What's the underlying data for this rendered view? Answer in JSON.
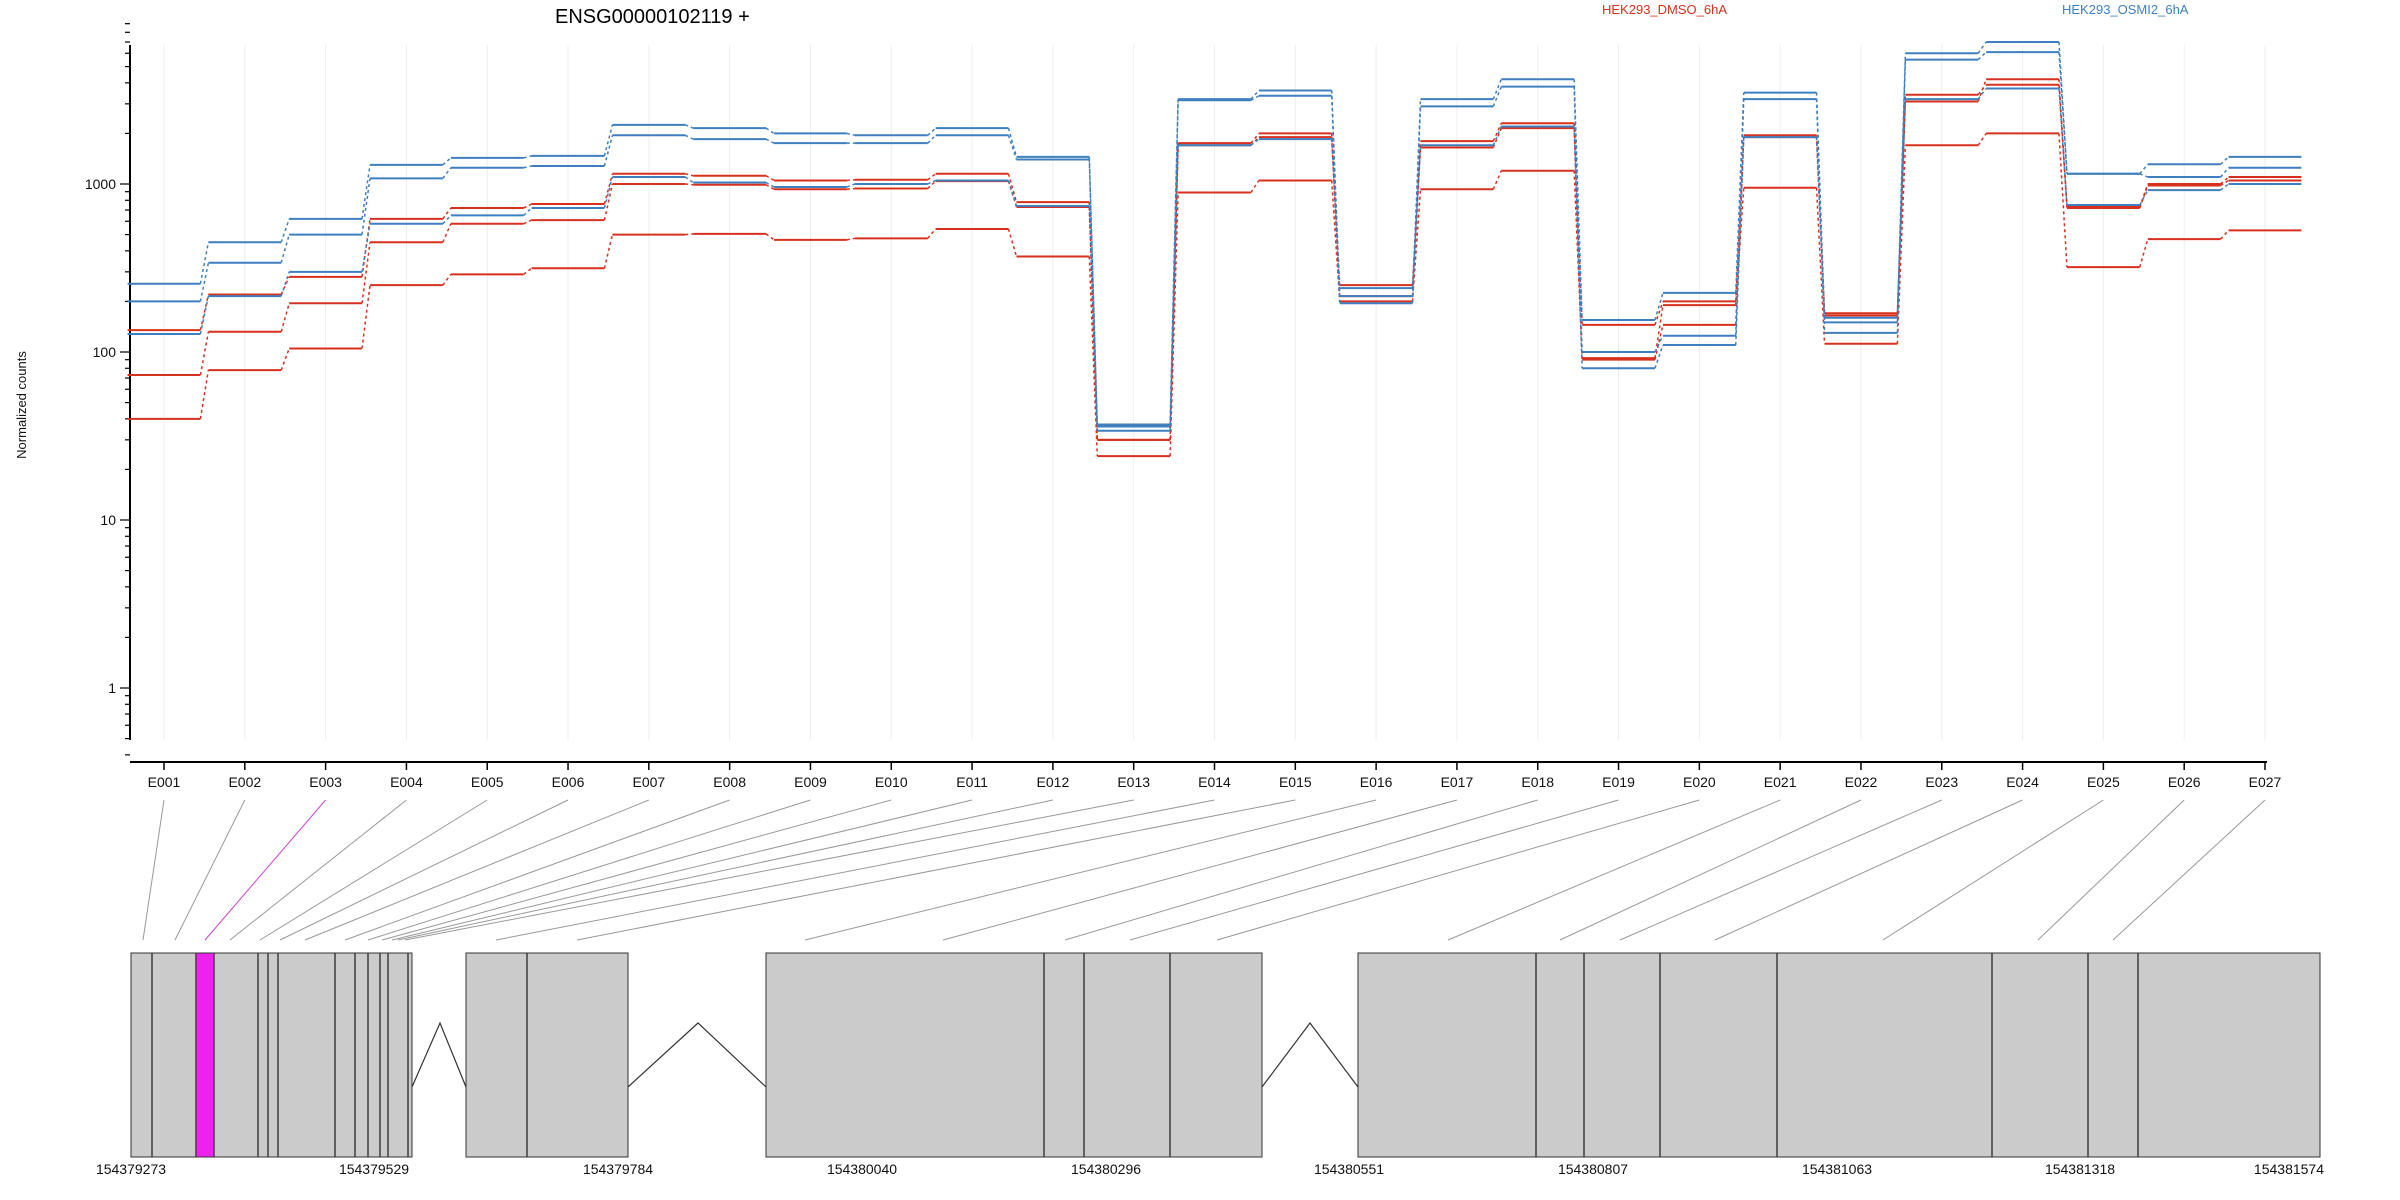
{
  "chart_data": {
    "type": "line",
    "title": "ENSG00000102119 +",
    "ylabel": "Normalized counts",
    "yscale": "log",
    "ylim": [
      0.35,
      9500
    ],
    "yticks": [
      1,
      10,
      100,
      1000
    ],
    "ytick_labels": [
      "1",
      "10",
      "100",
      "1000"
    ],
    "grid": "vertical light",
    "legend_placement": "top-right",
    "categories": [
      "E001",
      "E002",
      "E003",
      "E004",
      "E005",
      "E006",
      "E007",
      "E008",
      "E009",
      "E010",
      "E011",
      "E012",
      "E013",
      "E014",
      "E015",
      "E016",
      "E017",
      "E018",
      "E019",
      "E020",
      "E021",
      "E022",
      "E023",
      "E024",
      "E025",
      "E026",
      "E027"
    ],
    "legend": [
      {
        "label": "HEK293_DMSO_6hA",
        "color": "#d7301f"
      },
      {
        "label": "HEK293_OSMI2_6hA",
        "color": "#3f7fbf"
      }
    ],
    "series": [
      {
        "condition": "HEK293_DMSO_6hA",
        "color": "#d7301f",
        "values": [
          135,
          220,
          280,
          620,
          720,
          760,
          1150,
          1120,
          1050,
          1060,
          1150,
          780,
          30,
          1750,
          2000,
          250,
          1800,
          2300,
          145,
          200,
          1950,
          170,
          3100,
          4200,
          730,
          1000,
          1100
        ]
      },
      {
        "condition": "HEK293_DMSO_6hA",
        "color": "#d7301f",
        "values": [
          73,
          132,
          195,
          450,
          580,
          610,
          1000,
          990,
          930,
          940,
          1040,
          730,
          30,
          1700,
          1900,
          215,
          1650,
          2150,
          90,
          145,
          1900,
          165,
          3400,
          3900,
          720,
          980,
          1050
        ]
      },
      {
        "condition": "HEK293_DMSO_6hA",
        "color": "#d7301f",
        "values": [
          40,
          78,
          105,
          250,
          290,
          315,
          500,
          505,
          465,
          475,
          540,
          370,
          24,
          890,
          1050,
          200,
          930,
          1200,
          92,
          190,
          950,
          112,
          1700,
          2000,
          320,
          470,
          530
        ]
      },
      {
        "condition": "HEK293_OSMI2_6hA",
        "color": "#3f7fbf",
        "values": [
          255,
          450,
          620,
          1300,
          1430,
          1470,
          2250,
          2150,
          2000,
          1950,
          2150,
          1450,
          37,
          3200,
          3600,
          215,
          3200,
          4200,
          155,
          225,
          3500,
          160,
          6000,
          7000,
          1150,
          1310,
          1450
        ]
      },
      {
        "condition": "HEK293_OSMI2_6hA",
        "color": "#3f7fbf",
        "values": [
          200,
          340,
          500,
          1080,
          1250,
          1280,
          1950,
          1850,
          1750,
          1750,
          1950,
          1400,
          36,
          3150,
          3350,
          195,
          2900,
          3800,
          100,
          125,
          3200,
          130,
          5500,
          6100,
          1150,
          1100,
          1250
        ]
      },
      {
        "condition": "HEK293_OSMI2_6hA",
        "color": "#3f7fbf",
        "values": [
          128,
          215,
          300,
          580,
          650,
          720,
          1100,
          1020,
          960,
          1000,
          1050,
          740,
          34,
          1700,
          1850,
          240,
          1700,
          2200,
          80,
          110,
          1900,
          150,
          3200,
          3700,
          750,
          920,
          1000
        ]
      }
    ],
    "gene_model": {
      "coord_ticks": [
        "154379273",
        "154379529",
        "154379784",
        "154380040",
        "154380296",
        "154380551",
        "154380807",
        "154381063",
        "154381318",
        "154381574"
      ],
      "highlighted_exon": "E003",
      "highlight_color": "#ee22ee"
    }
  }
}
